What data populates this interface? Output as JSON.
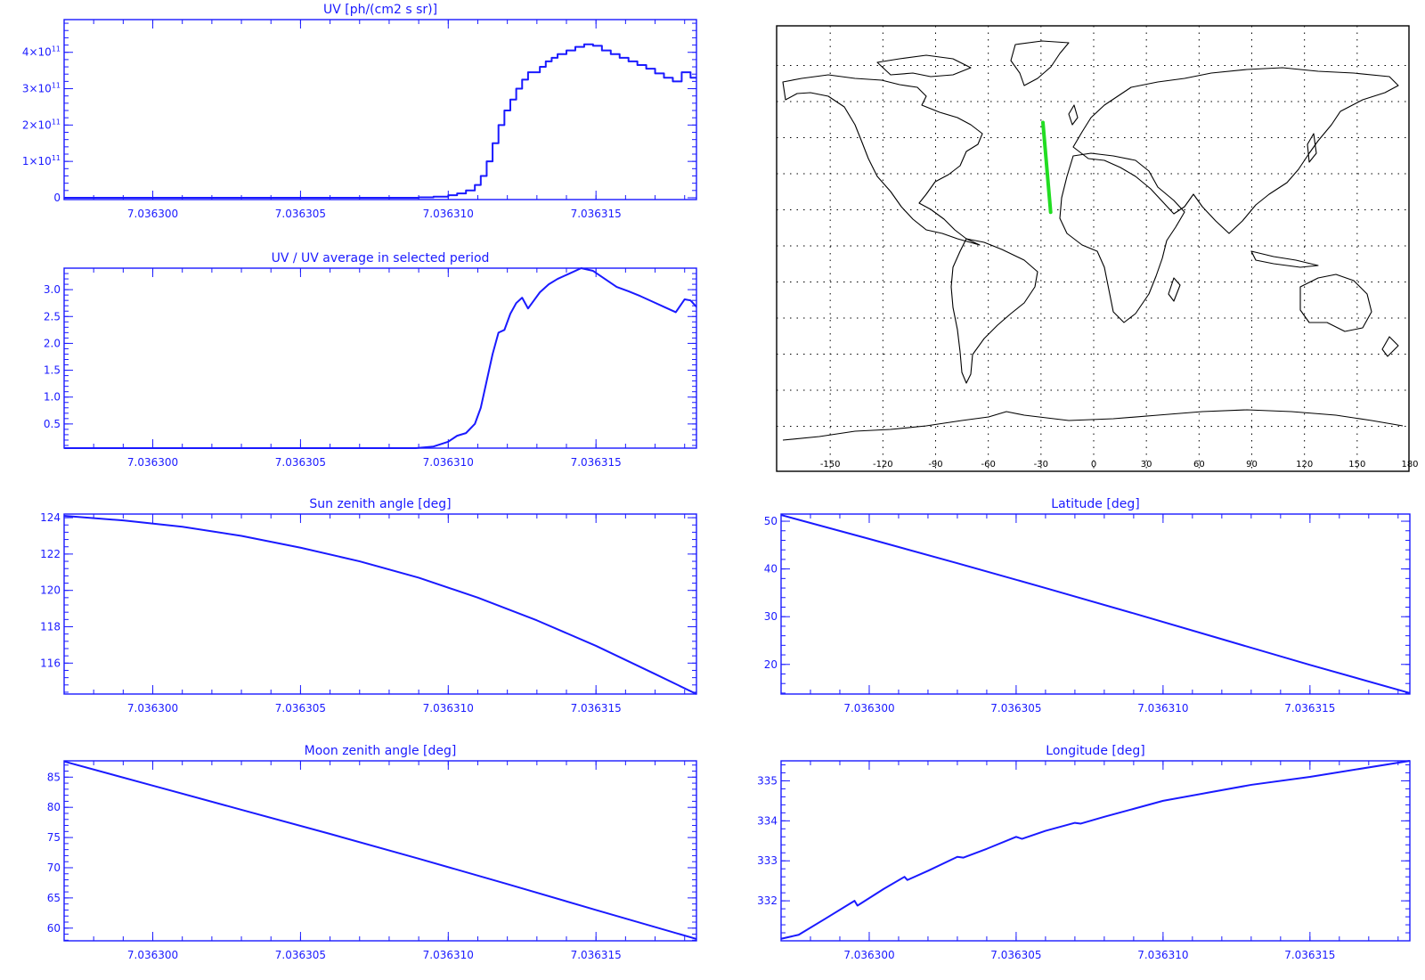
{
  "chart_data": [
    {
      "id": "uv",
      "type": "line",
      "step": true,
      "title": "UV [ph/(cm2 s sr)]",
      "xlim": [
        7.036297,
        7.0363184
      ],
      "ylim": [
        -5000000000.0,
        490000000000.0
      ],
      "xticks": [
        7.0363,
        7.036305,
        7.03631,
        7.036315
      ],
      "xtick_labels": [
        "7.036300",
        "7.036305",
        "7.036310",
        "7.036315"
      ],
      "yticks": [
        0,
        100000000000.0,
        200000000000.0,
        300000000000.0,
        400000000000.0
      ],
      "ytick_labels": [
        {
          "base": "0",
          "exp": ""
        },
        {
          "base": "1×10",
          "exp": "11"
        },
        {
          "base": "2×10",
          "exp": "11"
        },
        {
          "base": "3×10",
          "exp": "11"
        },
        {
          "base": "4×10",
          "exp": "11"
        }
      ],
      "x": [
        7.036297,
        7.0363085,
        7.036309,
        7.0363095,
        7.03631,
        7.0363103,
        7.0363106,
        7.0363109,
        7.0363111,
        7.0363113,
        7.0363115,
        7.0363117,
        7.0363119,
        7.0363121,
        7.0363123,
        7.0363125,
        7.0363127,
        7.0363129,
        7.0363131,
        7.0363133,
        7.0363135,
        7.0363137,
        7.036314,
        7.0363143,
        7.0363146,
        7.0363149,
        7.0363152,
        7.0363155,
        7.0363158,
        7.0363161,
        7.0363164,
        7.0363167,
        7.036317,
        7.0363173,
        7.0363176,
        7.0363179,
        7.0363182,
        7.0363184
      ],
      "y": [
        0,
        0,
        1000000000.0,
        3000000000.0,
        7000000000.0,
        12000000000.0,
        20000000000.0,
        35000000000.0,
        60000000000.0,
        100000000000.0,
        150000000000.0,
        200000000000.0,
        240000000000.0,
        270000000000.0,
        300000000000.0,
        325000000000.0,
        345000000000.0,
        345000000000.0,
        360000000000.0,
        375000000000.0,
        385000000000.0,
        395000000000.0,
        405000000000.0,
        415000000000.0,
        422000000000.0,
        418000000000.0,
        405000000000.0,
        395000000000.0,
        385000000000.0,
        375000000000.0,
        365000000000.0,
        355000000000.0,
        342000000000.0,
        330000000000.0,
        320000000000.0,
        345000000000.0,
        330000000000.0,
        330000000000.0
      ]
    },
    {
      "id": "uvnorm",
      "type": "line",
      "title": "UV / UV average in selected period",
      "xlim": [
        7.036297,
        7.0363184
      ],
      "ylim": [
        0.05,
        3.4
      ],
      "xticks": [
        7.0363,
        7.036305,
        7.03631,
        7.036315
      ],
      "xtick_labels": [
        "7.036300",
        "7.036305",
        "7.036310",
        "7.036315"
      ],
      "yticks": [
        0.5,
        1.0,
        1.5,
        2.0,
        2.5,
        3.0
      ],
      "ytick_labels": [
        "0.5",
        "1.0",
        "1.5",
        "2.0",
        "2.5",
        "3.0"
      ],
      "x": [
        7.036297,
        7.0363089,
        7.0363095,
        7.03631,
        7.0363103,
        7.0363106,
        7.0363109,
        7.0363111,
        7.0363113,
        7.0363115,
        7.0363117,
        7.0363119,
        7.0363121,
        7.0363123,
        7.0363125,
        7.0363127,
        7.0363129,
        7.0363131,
        7.0363134,
        7.0363137,
        7.0363141,
        7.0363145,
        7.0363149,
        7.0363153,
        7.0363157,
        7.0363161,
        7.0363165,
        7.0363169,
        7.0363173,
        7.0363177,
        7.036318,
        7.0363182,
        7.0363184
      ],
      "y": [
        0.05,
        0.05,
        0.08,
        0.17,
        0.28,
        0.33,
        0.5,
        0.8,
        1.3,
        1.8,
        2.2,
        2.25,
        2.55,
        2.75,
        2.85,
        2.65,
        2.8,
        2.95,
        3.1,
        3.2,
        3.3,
        3.4,
        3.35,
        3.2,
        3.05,
        2.97,
        2.88,
        2.78,
        2.68,
        2.58,
        2.82,
        2.8,
        2.68
      ]
    },
    {
      "id": "sza",
      "type": "line",
      "title": "Sun zenith angle [deg]",
      "xlim": [
        7.036297,
        7.0363184
      ],
      "ylim": [
        114.3,
        124.2
      ],
      "xticks": [
        7.0363,
        7.036305,
        7.03631,
        7.036315
      ],
      "xtick_labels": [
        "7.036300",
        "7.036305",
        "7.036310",
        "7.036315"
      ],
      "yticks": [
        116,
        118,
        120,
        122,
        124
      ],
      "ytick_labels": [
        "116",
        "118",
        "120",
        "122",
        "124"
      ],
      "x": [
        7.036297,
        7.036299,
        7.036301,
        7.036303,
        7.036305,
        7.036307,
        7.036309,
        7.036311,
        7.036313,
        7.036315,
        7.036317,
        7.0363184
      ],
      "y": [
        124.1,
        123.85,
        123.5,
        123.0,
        122.35,
        121.6,
        120.7,
        119.6,
        118.35,
        116.95,
        115.4,
        114.3
      ]
    },
    {
      "id": "mza",
      "type": "line",
      "title": "Moon zenith angle [deg]",
      "xlim": [
        7.036297,
        7.0363184
      ],
      "ylim": [
        57.9,
        87.7
      ],
      "xticks": [
        7.0363,
        7.036305,
        7.03631,
        7.036315
      ],
      "xtick_labels": [
        "7.036300",
        "7.036305",
        "7.036310",
        "7.036315"
      ],
      "yticks": [
        60,
        65,
        70,
        75,
        80,
        85
      ],
      "ytick_labels": [
        "60",
        "65",
        "70",
        "75",
        "80",
        "85"
      ],
      "x": [
        7.036297,
        7.0363,
        7.036303,
        7.036306,
        7.036309,
        7.036312,
        7.036315,
        7.0363184
      ],
      "y": [
        87.6,
        83.6,
        79.6,
        75.6,
        71.5,
        67.3,
        63.0,
        58.2
      ]
    },
    {
      "id": "lat",
      "type": "line",
      "title": "Latitude [deg]",
      "xlim": [
        7.036297,
        7.0363184
      ],
      "ylim": [
        13.8,
        51.5
      ],
      "xticks": [
        7.0363,
        7.036305,
        7.03631,
        7.036315
      ],
      "xtick_labels": [
        "7.036300",
        "7.036305",
        "7.036310",
        "7.036315"
      ],
      "yticks": [
        20,
        30,
        40,
        50
      ],
      "ytick_labels": [
        "20",
        "30",
        "40",
        "50"
      ],
      "x": [
        7.036297,
        7.0363,
        7.036303,
        7.036306,
        7.036309,
        7.036312,
        7.036315,
        7.0363184
      ],
      "y": [
        51.3,
        46.3,
        41.2,
        36.0,
        30.7,
        25.3,
        19.9,
        14.0
      ]
    },
    {
      "id": "lon",
      "type": "line",
      "title": "Longitude [deg]",
      "xlim": [
        7.036297,
        7.0363184
      ],
      "ylim": [
        331.0,
        335.5
      ],
      "xticks": [
        7.0363,
        7.036305,
        7.03631,
        7.036315
      ],
      "xtick_labels": [
        "7.036300",
        "7.036305",
        "7.036310",
        "7.036315"
      ],
      "yticks": [
        332,
        333,
        334,
        335
      ],
      "ytick_labels": [
        "332",
        "333",
        "334",
        "335"
      ],
      "x": [
        7.036297,
        7.0362976,
        7.0362985,
        7.0362995,
        7.0362996,
        7.0363005,
        7.0363012,
        7.0363013,
        7.036302,
        7.036303,
        7.0363032,
        7.036304,
        7.036305,
        7.0363052,
        7.036306,
        7.036307,
        7.0363072,
        7.036308,
        7.036309,
        7.03631,
        7.0363115,
        7.036313,
        7.036315,
        7.0363184
      ],
      "y": [
        331.05,
        331.15,
        331.55,
        332.0,
        331.88,
        332.3,
        332.6,
        332.52,
        332.75,
        333.1,
        333.08,
        333.3,
        333.6,
        333.55,
        333.75,
        333.95,
        333.93,
        334.1,
        334.3,
        334.5,
        334.7,
        334.9,
        335.1,
        335.5
      ]
    }
  ],
  "map": {
    "xtick_labels": [
      "-150",
      "-120",
      "-90",
      "-60",
      "-30",
      "0",
      "30",
      "60",
      "90",
      "120",
      "150",
      "180"
    ],
    "xticks": [
      -150,
      -120,
      -90,
      -60,
      -30,
      0,
      30,
      60,
      90,
      120,
      150,
      180
    ],
    "track": {
      "lat": [
        51.3,
        14.0
      ],
      "lon": [
        -28.9,
        -24.5
      ]
    },
    "track_color": "#22dd22",
    "line_color": "#1a1aff"
  }
}
